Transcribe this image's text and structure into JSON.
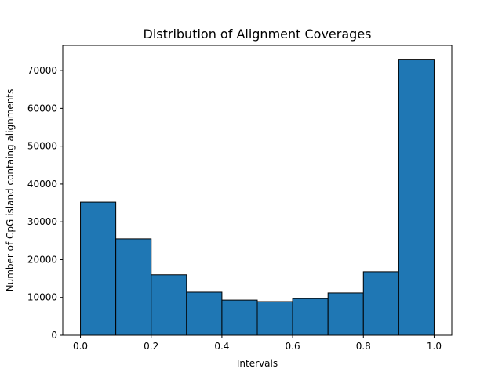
{
  "chart_data": {
    "type": "bar",
    "title": "Distribution of Alignment Coverages",
    "xlabel": "Intervals",
    "ylabel": "Number of CpG island containg alignments",
    "bins": [
      {
        "x0": 0.0,
        "x1": 0.1,
        "value": 35200
      },
      {
        "x0": 0.1,
        "x1": 0.2,
        "value": 25500
      },
      {
        "x0": 0.2,
        "x1": 0.3,
        "value": 16000
      },
      {
        "x0": 0.3,
        "x1": 0.4,
        "value": 11400
      },
      {
        "x0": 0.4,
        "x1": 0.5,
        "value": 9300
      },
      {
        "x0": 0.5,
        "x1": 0.6,
        "value": 8900
      },
      {
        "x0": 0.6,
        "x1": 0.7,
        "value": 9700
      },
      {
        "x0": 0.7,
        "x1": 0.8,
        "value": 11200
      },
      {
        "x0": 0.8,
        "x1": 0.9,
        "value": 16800
      },
      {
        "x0": 0.9,
        "x1": 1.0,
        "value": 73000
      }
    ],
    "xlim": [
      -0.05,
      1.05
    ],
    "ylim": [
      0,
      76650
    ],
    "xticks": [
      0.0,
      0.2,
      0.4,
      0.6,
      0.8,
      1.0
    ],
    "xtick_labels": [
      "0.0",
      "0.2",
      "0.4",
      "0.6",
      "0.8",
      "1.0"
    ],
    "yticks": [
      0,
      10000,
      20000,
      30000,
      40000,
      50000,
      60000,
      70000
    ],
    "ytick_labels": [
      "0",
      "10000",
      "20000",
      "30000",
      "40000",
      "50000",
      "60000",
      "70000"
    ],
    "bar_color": "#1f77b4",
    "edge_color": "#000000",
    "grid": false,
    "legend": "none"
  }
}
